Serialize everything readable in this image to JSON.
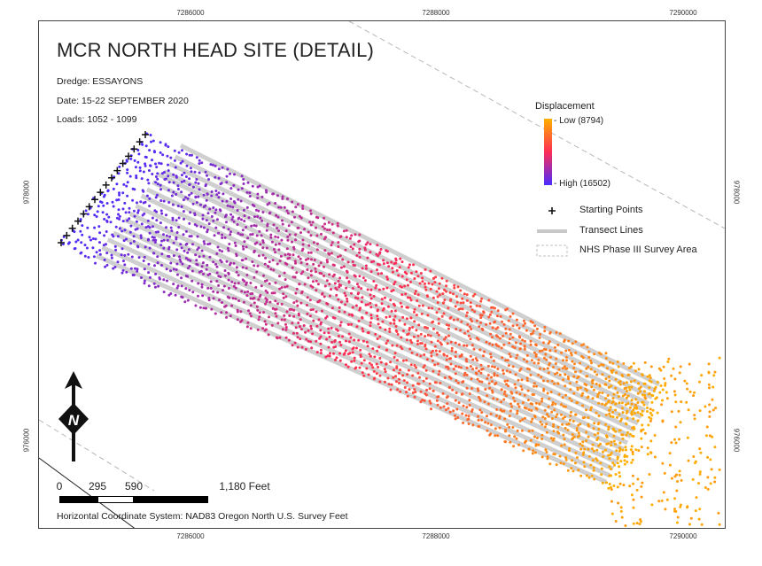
{
  "ticks": {
    "top": [
      "7286000",
      "7288000",
      "7290000"
    ],
    "bottom": [
      "7286000",
      "7288000",
      "7290000"
    ],
    "left": [
      "978000",
      "976000"
    ],
    "right": [
      "978000",
      "976000"
    ]
  },
  "map": {
    "title": "MCR NORTH HEAD SITE (DETAIL)",
    "dredge": "Dredge: ESSAYONS",
    "date": "Date: 15-22 SEPTEMBER 2020",
    "loads": "Loads: 1052 - 1099"
  },
  "legend": {
    "title": "Displacement",
    "low_label": "- Low (8794)",
    "high_label": "- High (16502)",
    "starting_points": "Starting Points",
    "transect_lines": "Transect Lines",
    "survey_area": "NHS Phase III Survey Area",
    "colors": {
      "low": "#ffb000",
      "mid": "#ff2d55",
      "high": "#4b2cff"
    }
  },
  "scalebar": {
    "labels": [
      "0",
      "295",
      "590",
      "1,180 Feet"
    ]
  },
  "footer": {
    "crs": "Horizontal Coordinate System: NAD83 Oregon North U.S. Survey Feet"
  },
  "north_arrow": {
    "label": "N"
  }
}
